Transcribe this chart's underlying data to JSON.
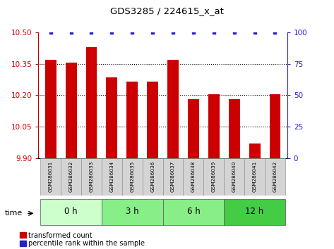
{
  "title": "GDS3285 / 224615_x_at",
  "samples": [
    "GSM286031",
    "GSM286032",
    "GSM286033",
    "GSM286034",
    "GSM286035",
    "GSM286036",
    "GSM286037",
    "GSM286038",
    "GSM286039",
    "GSM286040",
    "GSM286041",
    "GSM286042"
  ],
  "bar_values": [
    10.37,
    10.355,
    10.43,
    10.285,
    10.265,
    10.265,
    10.37,
    10.18,
    10.205,
    10.18,
    9.97,
    10.205
  ],
  "percentile_values": [
    100,
    100,
    100,
    100,
    100,
    100,
    100,
    100,
    100,
    100,
    100,
    100
  ],
  "ylim_left": [
    9.9,
    10.5
  ],
  "ylim_right": [
    0,
    100
  ],
  "yticks_left": [
    9.9,
    10.05,
    10.2,
    10.35,
    10.5
  ],
  "yticks_right": [
    0,
    25,
    50,
    75,
    100
  ],
  "bar_color": "#cc0000",
  "dot_color": "#2222cc",
  "groups": [
    {
      "label": "0 h",
      "start": 0,
      "end": 3,
      "color": "#ccffcc"
    },
    {
      "label": "3 h",
      "start": 3,
      "end": 6,
      "color": "#88ee88"
    },
    {
      "label": "6 h",
      "start": 6,
      "end": 9,
      "color": "#88ee88"
    },
    {
      "label": "12 h",
      "start": 9,
      "end": 12,
      "color": "#44cc44"
    }
  ],
  "time_label": "time",
  "legend_bar_label": "transformed count",
  "legend_dot_label": "percentile rank within the sample",
  "tick_color_left": "#cc0000",
  "tick_color_right": "#2222cc",
  "sample_box_color": "#d4d4d4",
  "grid_linestyle": "dotted"
}
